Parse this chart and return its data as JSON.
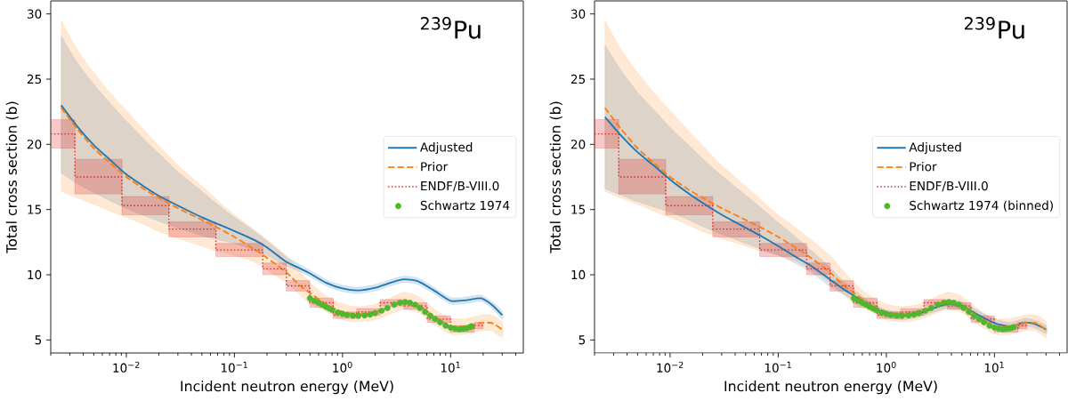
{
  "chart_data": [
    {
      "type": "line",
      "xlabel": "Incident neutron energy (MeV)",
      "ylabel": "Total cross section (b)",
      "annotations": [
        "$^{239}$Pu"
      ],
      "log": "x",
      "xlim": [
        0.002,
        47
      ],
      "xticks": [
        {
          "value": 0.01,
          "label": "10$^{−2}$"
        },
        {
          "value": 0.1,
          "label": "10$^{−1}$"
        },
        {
          "value": 1,
          "label": "10$^{0}$"
        },
        {
          "value": 10,
          "label": "10$^{1}$"
        }
      ],
      "ylim": [
        4,
        31
      ],
      "yticks": [
        5,
        10,
        15,
        20,
        25,
        30
      ],
      "legend": "right",
      "series": [
        {
          "name": "Adjusted",
          "color": "#1f77b4",
          "line_style": "solid",
          "x": [
            0.0025,
            0.0035,
            0.005,
            0.007,
            0.01,
            0.015,
            0.02,
            0.03,
            0.05,
            0.07,
            0.1,
            0.15,
            0.2,
            0.3,
            0.4,
            0.5,
            0.7,
            1.0,
            1.4,
            2.0,
            2.8,
            3.7,
            5,
            7,
            10,
            14,
            19,
            24,
            30
          ],
          "values": [
            23.0,
            21.4,
            19.95,
            18.85,
            17.7,
            16.7,
            16.05,
            15.3,
            14.4,
            13.9,
            13.35,
            12.7,
            12.1,
            11.0,
            10.5,
            10.1,
            9.4,
            8.95,
            8.8,
            9.0,
            9.4,
            9.65,
            9.5,
            8.8,
            8.0,
            8.05,
            8.2,
            7.7,
            6.9
          ],
          "lower": [
            17.8,
            17.0,
            16.3,
            15.7,
            15.1,
            14.5,
            14.1,
            13.6,
            13.0,
            12.7,
            12.4,
            11.9,
            11.5,
            10.7,
            10.25,
            9.85,
            9.15,
            8.7,
            8.55,
            8.75,
            9.15,
            9.4,
            9.25,
            8.55,
            7.75,
            7.8,
            7.95,
            7.45,
            6.6
          ],
          "upper": [
            28.3,
            26.3,
            24.6,
            23.2,
            21.8,
            20.3,
            19.3,
            17.9,
            16.4,
            15.4,
            14.4,
            13.4,
            12.6,
            11.4,
            10.8,
            10.35,
            9.65,
            9.2,
            9.05,
            9.25,
            9.65,
            9.9,
            9.75,
            9.05,
            8.25,
            8.3,
            8.45,
            7.95,
            7.2
          ]
        },
        {
          "name": "Prior",
          "color": "#ff7f0e",
          "line_style": "dashed",
          "x": [
            0.0025,
            0.0035,
            0.005,
            0.007,
            0.01,
            0.015,
            0.02,
            0.03,
            0.05,
            0.07,
            0.1,
            0.15,
            0.2,
            0.3,
            0.4,
            0.5,
            0.7,
            1.0,
            1.4,
            2.0,
            2.8,
            3.7,
            5,
            7,
            10,
            14,
            19,
            24,
            30
          ],
          "values": [
            22.8,
            21.2,
            19.7,
            18.6,
            17.5,
            16.5,
            15.9,
            15.1,
            14.2,
            13.6,
            12.9,
            12.0,
            11.3,
            10.2,
            9.2,
            8.6,
            7.75,
            7.15,
            6.97,
            7.15,
            7.6,
            8.0,
            7.7,
            6.8,
            6.05,
            6.05,
            6.3,
            6.3,
            5.8
          ],
          "lower": [
            16.4,
            15.9,
            15.4,
            14.9,
            14.4,
            13.8,
            13.3,
            12.8,
            12.2,
            11.8,
            11.5,
            11.0,
            10.4,
            9.4,
            8.5,
            7.8,
            7.2,
            6.55,
            6.4,
            6.55,
            7.0,
            7.35,
            7.1,
            6.2,
            5.45,
            5.45,
            5.7,
            5.7,
            5.2
          ],
          "upper": [
            29.5,
            27.3,
            25.5,
            24.0,
            22.6,
            21.0,
            19.9,
            18.4,
            16.8,
            15.7,
            14.6,
            13.5,
            12.7,
            11.5,
            10.3,
            9.4,
            8.4,
            7.75,
            7.55,
            7.75,
            8.25,
            8.65,
            8.35,
            7.4,
            6.65,
            6.65,
            6.9,
            6.9,
            6.4
          ]
        },
        {
          "name": "ENDF/B-VIII.0",
          "type": "step",
          "color": "#d62728",
          "line_style": "dotted",
          "x": [
            0.002,
            0.00335,
            0.00912,
            0.0248,
            0.0674,
            0.183,
            0.302,
            0.498,
            0.821,
            1.353,
            2.23,
            3.68,
            6.07,
            10,
            16.5,
            20
          ],
          "values": [
            20.8,
            17.5,
            15.3,
            13.5,
            11.9,
            10.45,
            9.15,
            7.85,
            6.9,
            7.15,
            7.85,
            7.6,
            6.6,
            5.85,
            6.1,
            6.1
          ],
          "lower": [
            19.7,
            16.2,
            14.6,
            12.9,
            11.4,
            10.0,
            8.75,
            7.5,
            6.65,
            6.9,
            7.6,
            7.35,
            6.35,
            5.6,
            5.85,
            5.85
          ],
          "upper": [
            21.9,
            18.85,
            16.0,
            14.05,
            12.4,
            10.9,
            9.55,
            8.2,
            7.15,
            7.4,
            8.1,
            7.85,
            6.85,
            6.1,
            6.35,
            6.35
          ]
        },
        {
          "name": "Schwartz 1974",
          "type": "scatter",
          "color": "#4db82d",
          "marker": "circle",
          "x": [
            0.5,
            0.55,
            0.6,
            0.65,
            0.7,
            0.75,
            0.8,
            0.9,
            1.0,
            1.1,
            1.25,
            1.4,
            1.6,
            1.8,
            2.0,
            2.3,
            2.6,
            3.0,
            3.4,
            3.8,
            4.2,
            4.7,
            5.2,
            5.8,
            6.5,
            7.2,
            8.0,
            9.0,
            10,
            11,
            12,
            13,
            14,
            15,
            15.6
          ],
          "values": [
            8.2,
            8.0,
            7.85,
            7.7,
            7.55,
            7.42,
            7.3,
            7.1,
            7.0,
            6.92,
            6.86,
            6.85,
            6.88,
            6.95,
            7.05,
            7.25,
            7.45,
            7.7,
            7.85,
            7.9,
            7.85,
            7.7,
            7.45,
            7.15,
            6.85,
            6.6,
            6.35,
            6.1,
            5.95,
            5.87,
            5.82,
            5.85,
            5.9,
            5.98,
            6.05
          ],
          "errors": [
            0.15,
            0.15,
            0.15,
            0.15,
            0.15,
            0.15,
            0.15,
            0.15,
            0.15,
            0.15,
            0.15,
            0.15,
            0.15,
            0.15,
            0.15,
            0.15,
            0.15,
            0.15,
            0.15,
            0.15,
            0.15,
            0.15,
            0.15,
            0.15,
            0.15,
            0.15,
            0.15,
            0.15,
            0.15,
            0.15,
            0.15,
            0.15,
            0.15,
            0.15,
            0.15
          ]
        }
      ]
    },
    {
      "type": "line",
      "xlabel": "Incident neutron energy (MeV)",
      "ylabel": "Total cross section (b)",
      "annotations": [
        "$^{239}$Pu"
      ],
      "log": "x",
      "xlim": [
        0.002,
        47
      ],
      "xticks": [
        {
          "value": 0.01,
          "label": "10$^{−2}$"
        },
        {
          "value": 0.1,
          "label": "10$^{−1}$"
        },
        {
          "value": 1,
          "label": "10$^{0}$"
        },
        {
          "value": 10,
          "label": "10$^{1}$"
        }
      ],
      "ylim": [
        4,
        31
      ],
      "yticks": [
        5,
        10,
        15,
        20,
        25,
        30
      ],
      "legend": "right",
      "series": [
        {
          "name": "Adjusted",
          "color": "#1f77b4",
          "line_style": "solid",
          "x": [
            0.0025,
            0.0035,
            0.005,
            0.007,
            0.01,
            0.015,
            0.02,
            0.03,
            0.05,
            0.07,
            0.1,
            0.15,
            0.2,
            0.3,
            0.4,
            0.5,
            0.7,
            1.0,
            1.4,
            2.0,
            2.8,
            3.7,
            5,
            7,
            10,
            14,
            19,
            24,
            30
          ],
          "values": [
            22.1,
            20.7,
            19.4,
            18.4,
            17.3,
            16.2,
            15.5,
            14.6,
            13.6,
            12.95,
            12.2,
            11.3,
            10.7,
            9.65,
            8.9,
            8.4,
            7.63,
            7.02,
            6.85,
            7.02,
            7.46,
            7.75,
            7.63,
            6.95,
            6.3,
            6.05,
            6.34,
            6.2,
            5.8
          ],
          "lower": [
            16.6,
            16.1,
            15.6,
            15.2,
            14.8,
            14.2,
            13.7,
            13.1,
            12.4,
            11.95,
            11.5,
            10.8,
            10.2,
            9.1,
            8.5,
            8.05,
            7.35,
            6.75,
            6.55,
            6.75,
            7.15,
            7.45,
            7.33,
            6.65,
            6.0,
            5.75,
            6.05,
            5.9,
            5.5
          ],
          "upper": [
            27.6,
            25.7,
            24.0,
            22.7,
            21.3,
            19.9,
            18.9,
            17.6,
            16.1,
            15.1,
            14.0,
            12.8,
            11.9,
            10.6,
            9.5,
            8.9,
            7.95,
            7.3,
            7.15,
            7.3,
            7.75,
            8.05,
            7.93,
            7.25,
            6.6,
            6.35,
            6.65,
            6.5,
            6.1
          ]
        },
        {
          "name": "Prior",
          "color": "#ff7f0e",
          "line_style": "dashed",
          "x": [
            0.0025,
            0.0035,
            0.005,
            0.007,
            0.01,
            0.015,
            0.02,
            0.03,
            0.05,
            0.07,
            0.1,
            0.15,
            0.2,
            0.3,
            0.4,
            0.5,
            0.7,
            1.0,
            1.4,
            2.0,
            2.8,
            3.7,
            5,
            7,
            10,
            14,
            19,
            24,
            30
          ],
          "values": [
            22.8,
            21.2,
            19.7,
            18.6,
            17.5,
            16.5,
            15.9,
            15.1,
            14.2,
            13.6,
            12.9,
            12.0,
            11.3,
            10.2,
            9.2,
            8.6,
            7.75,
            7.15,
            6.97,
            7.15,
            7.6,
            8.0,
            7.7,
            6.8,
            6.05,
            6.05,
            6.3,
            6.3,
            5.8
          ],
          "lower": [
            16.4,
            15.9,
            15.4,
            14.9,
            14.4,
            13.8,
            13.3,
            12.8,
            12.2,
            11.8,
            11.5,
            11.0,
            10.4,
            9.4,
            8.5,
            7.8,
            7.2,
            6.55,
            6.4,
            6.55,
            7.0,
            7.35,
            7.1,
            6.2,
            5.45,
            5.45,
            5.7,
            5.7,
            5.2
          ],
          "upper": [
            29.5,
            27.3,
            25.5,
            24.0,
            22.6,
            21.0,
            19.9,
            18.4,
            16.8,
            15.7,
            14.6,
            13.5,
            12.7,
            11.5,
            10.3,
            9.4,
            8.4,
            7.75,
            7.55,
            7.75,
            8.25,
            8.65,
            8.35,
            7.4,
            6.65,
            6.65,
            6.9,
            6.9,
            6.4
          ]
        },
        {
          "name": "ENDF/B-VIII.0",
          "type": "step",
          "color": "#d62728",
          "line_style": "dotted",
          "x": [
            0.002,
            0.00335,
            0.00912,
            0.0248,
            0.0674,
            0.183,
            0.302,
            0.498,
            0.821,
            1.353,
            2.23,
            3.68,
            6.07,
            10,
            16.5,
            20
          ],
          "values": [
            20.8,
            17.5,
            15.3,
            13.5,
            11.9,
            10.45,
            9.15,
            7.85,
            6.9,
            7.15,
            7.85,
            7.6,
            6.6,
            5.85,
            6.1,
            6.1
          ],
          "lower": [
            19.7,
            16.2,
            14.6,
            12.9,
            11.4,
            10.0,
            8.75,
            7.5,
            6.65,
            6.9,
            7.6,
            7.35,
            6.35,
            5.6,
            5.85,
            5.85
          ],
          "upper": [
            21.9,
            18.85,
            16.0,
            14.05,
            12.4,
            10.9,
            9.55,
            8.2,
            7.15,
            7.4,
            8.1,
            7.85,
            6.85,
            6.1,
            6.35,
            6.35
          ]
        },
        {
          "name": "Schwartz 1974 (binned)",
          "type": "scatter",
          "color": "#4db82d",
          "marker": "circle",
          "x": [
            0.5,
            0.55,
            0.6,
            0.65,
            0.7,
            0.75,
            0.8,
            0.9,
            1.0,
            1.1,
            1.25,
            1.4,
            1.6,
            1.8,
            2.0,
            2.3,
            2.6,
            3.0,
            3.4,
            3.8,
            4.2,
            4.7,
            5.2,
            5.8,
            6.5,
            7.2,
            8.0,
            9.0,
            10,
            11,
            12,
            13,
            14,
            15
          ],
          "values": [
            8.2,
            8.0,
            7.85,
            7.7,
            7.55,
            7.42,
            7.3,
            7.1,
            7.0,
            6.92,
            6.86,
            6.85,
            6.88,
            6.95,
            7.05,
            7.25,
            7.45,
            7.7,
            7.85,
            7.9,
            7.85,
            7.7,
            7.45,
            7.15,
            6.85,
            6.6,
            6.35,
            6.1,
            5.95,
            5.87,
            5.82,
            5.85,
            5.9,
            5.98
          ],
          "errors": [
            0.12,
            0.12,
            0.12,
            0.12,
            0.12,
            0.12,
            0.12,
            0.12,
            0.12,
            0.12,
            0.12,
            0.12,
            0.12,
            0.12,
            0.12,
            0.12,
            0.12,
            0.12,
            0.12,
            0.12,
            0.12,
            0.12,
            0.12,
            0.12,
            0.12,
            0.12,
            0.12,
            0.12,
            0.12,
            0.12,
            0.12,
            0.12,
            0.12,
            0.12
          ]
        }
      ]
    }
  ]
}
